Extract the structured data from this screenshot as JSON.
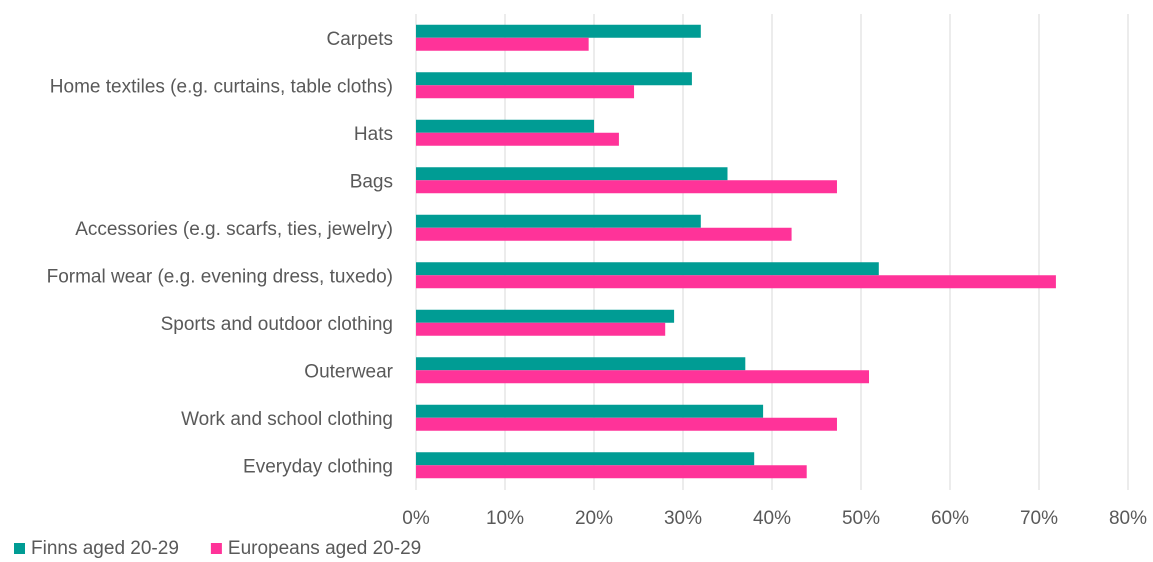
{
  "chart_data": {
    "type": "bar",
    "orientation": "horizontal",
    "categories": [
      "Carpets",
      "Home textiles (e.g. curtains, table cloths)",
      "Hats",
      "Bags",
      "Accessories (e.g. scarfs, ties, jewelry)",
      "Formal wear (e.g. evening dress, tuxedo)",
      "Sports and outdoor clothing",
      "Outerwear",
      "Work and school clothing",
      "Everyday clothing"
    ],
    "series": [
      {
        "name": "Finns aged 20-29",
        "color": "#009c94",
        "values": [
          32,
          31,
          20,
          35,
          32,
          52,
          29,
          37,
          39,
          38
        ]
      },
      {
        "name": "Europeans aged 20-29",
        "color": "#ff3399",
        "values": [
          19.4,
          24.5,
          22.8,
          47.3,
          42.2,
          71.9,
          28,
          50.9,
          47.3,
          43.9
        ]
      }
    ],
    "xlim": [
      0,
      80
    ],
    "xticks": [
      0,
      10,
      20,
      30,
      40,
      50,
      60,
      70,
      80
    ],
    "xtick_labels": [
      "0%",
      "10%",
      "20%",
      "30%",
      "40%",
      "50%",
      "60%",
      "70%",
      "80%"
    ],
    "grid": "vertical",
    "legend_position": "bottom-left",
    "title": "",
    "xlabel": "",
    "ylabel": ""
  }
}
